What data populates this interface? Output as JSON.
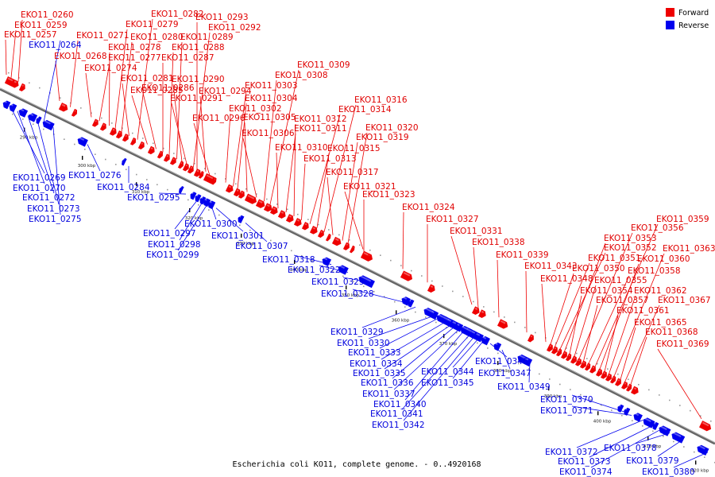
{
  "caption": "Escherichia coli KO11, complete genome. - 0..4920168",
  "colors": {
    "forward": "#ee0000",
    "reverse": "#0000ee",
    "backbone": "#666666"
  },
  "legend": [
    {
      "label": "Forward",
      "color": "#ee0000"
    },
    {
      "label": "Reverse",
      "color": "#0000ee"
    }
  ],
  "scale_ticks": [
    "290 kbp",
    "300 kbp",
    "310 kbp",
    "320 kbp",
    "330 kbp",
    "340 kbp",
    "350 kbp",
    "360 kbp",
    "370 kbp",
    "380 kbp",
    "390 kbp",
    "400 kbp",
    "410 kbp",
    "420 kbp"
  ],
  "forward_genes": [
    "EKO11_0257",
    "EKO11_0259",
    "EKO11_0260",
    "EKO11_0268",
    "EKO11_0271",
    "EKO11_0274",
    "EKO11_0277",
    "EKO11_0278",
    "EKO11_0279",
    "EKO11_0280",
    "EKO11_0281",
    "EKO11_0282",
    "EKO11_0285",
    "EKO11_0286",
    "EKO11_0287",
    "EKO11_0288",
    "EKO11_0289",
    "EKO11_0290",
    "EKO11_0291",
    "EKO11_0292",
    "EKO11_0293",
    "EKO11_0294",
    "EKO11_0296",
    "EKO11_0302",
    "EKO11_0303",
    "EKO11_0304",
    "EKO11_0305",
    "EKO11_0306",
    "EKO11_0308",
    "EKO11_0309",
    "EKO11_0310",
    "EKO11_0311",
    "EKO11_0312",
    "EKO11_0313",
    "EKO11_0314",
    "EKO11_0315",
    "EKO11_0316",
    "EKO11_0317",
    "EKO11_0319",
    "EKO11_0320",
    "EKO11_0321",
    "EKO11_0323",
    "EKO11_0324",
    "EKO11_0327",
    "EKO11_0331",
    "EKO11_0338",
    "EKO11_0339",
    "EKO11_0343",
    "EKO11_0348",
    "EKO11_0350",
    "EKO11_0351",
    "EKO11_0352",
    "EKO11_0353",
    "EKO11_0354",
    "EKO11_0355",
    "EKO11_0356",
    "EKO11_0357",
    "EKO11_0358",
    "EKO11_0359",
    "EKO11_0360",
    "EKO11_0361",
    "EKO11_0362",
    "EKO11_0363",
    "EKO11_0365",
    "EKO11_0367",
    "EKO11_0368",
    "EKO11_0369"
  ],
  "reverse_genes": [
    "EKO11_0264",
    "EKO11_0269",
    "EKO11_0270",
    "EKO11_0272",
    "EKO11_0273",
    "EKO11_0275",
    "EKO11_0276",
    "EKO11_0284",
    "EKO11_0295",
    "EKO11_0297",
    "EKO11_0298",
    "EKO11_0299",
    "EKO11_0300",
    "EKO11_0301",
    "EKO11_0307",
    "EKO11_0318",
    "EKO11_0322",
    "EKO11_0325",
    "EKO11_0328",
    "EKO11_0329",
    "EKO11_0330",
    "EKO11_0333",
    "EKO11_0334",
    "EKO11_0335",
    "EKO11_0336",
    "EKO11_0337",
    "EKO11_0340",
    "EKO11_0341",
    "EKO11_0342",
    "EKO11_0344",
    "EKO11_0345",
    "EKO11_0346",
    "EKO11_0347",
    "EKO11_0349",
    "EKO11_0370",
    "EKO11_0371",
    "EKO11_0372",
    "EKO11_0373",
    "EKO11_0374",
    "EKO11_0378",
    "EKO11_0379",
    "EKO11_0380"
  ]
}
